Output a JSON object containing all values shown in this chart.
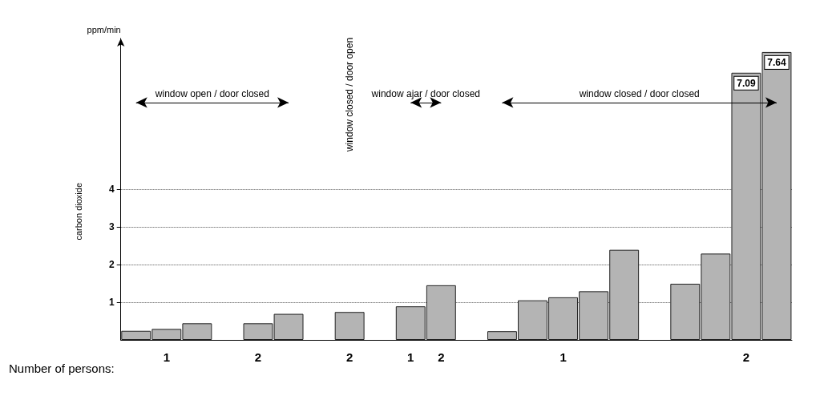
{
  "chart_data": {
    "type": "bar",
    "ylabel": "carbon dioxide",
    "xlabel": "Number of persons:",
    "annotations": [
      "ppm/min",
      "window open / door closed",
      "window closed / door open",
      "window ajar / door closed",
      "window closed / door closed"
    ],
    "categories": [
      null,
      "1",
      null,
      null,
      "2",
      null,
      null,
      "2",
      null,
      "1",
      "2",
      null,
      null,
      null,
      "1",
      null,
      null,
      null,
      null,
      null,
      "2",
      null
    ],
    "values": [
      0.24,
      0.29,
      0.44,
      null,
      0.44,
      0.69,
      null,
      0.74,
      null,
      0.89,
      1.45,
      null,
      0.23,
      1.05,
      1.13,
      1.29,
      2.39,
      null,
      1.49,
      2.29,
      7.09,
      7.64
    ],
    "value_labels": [
      null,
      null,
      null,
      null,
      null,
      null,
      null,
      null,
      null,
      null,
      null,
      null,
      null,
      null,
      null,
      null,
      null,
      null,
      null,
      null,
      "7.09",
      "7.64"
    ],
    "color": "#b4b4b4",
    "ylim": [
      0,
      8
    ],
    "yticks": [
      1,
      2,
      3,
      4
    ],
    "grid": "y"
  }
}
